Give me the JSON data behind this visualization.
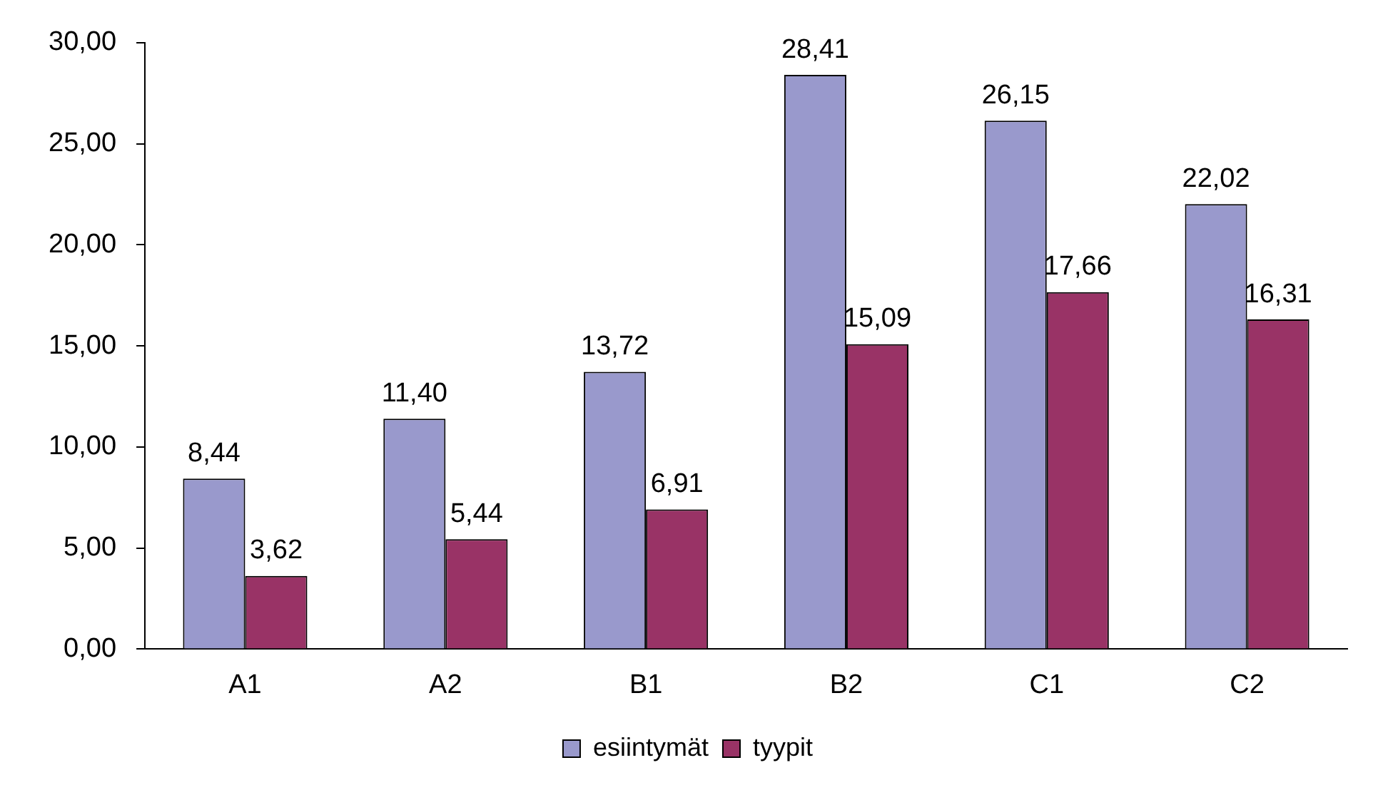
{
  "chart_data": {
    "type": "bar",
    "categories": [
      "A1",
      "A2",
      "B1",
      "B2",
      "C1",
      "C2"
    ],
    "series": [
      {
        "name": "esiintymät",
        "color": "#9999cc",
        "values": [
          8.44,
          11.4,
          13.72,
          28.41,
          26.15,
          22.02
        ],
        "value_labels": [
          "8,44",
          "11,40",
          "13,72",
          "28,41",
          "26,15",
          "22,02"
        ]
      },
      {
        "name": "tyypit",
        "color": "#993366",
        "values": [
          3.62,
          5.44,
          6.91,
          15.09,
          17.66,
          16.31
        ],
        "value_labels": [
          "3,62",
          "5,44",
          "6,91",
          "15,09",
          "17,66",
          "16,31"
        ]
      }
    ],
    "ylim": [
      0,
      30
    ],
    "yticks": [
      {
        "value": 0,
        "label": "0,00"
      },
      {
        "value": 5,
        "label": "5,00"
      },
      {
        "value": 10,
        "label": "10,00"
      },
      {
        "value": 15,
        "label": "15,00"
      },
      {
        "value": 20,
        "label": "20,00"
      },
      {
        "value": 25,
        "label": "25,00"
      },
      {
        "value": 30,
        "label": "30,00"
      }
    ],
    "grid": false,
    "legend": "bottom"
  }
}
